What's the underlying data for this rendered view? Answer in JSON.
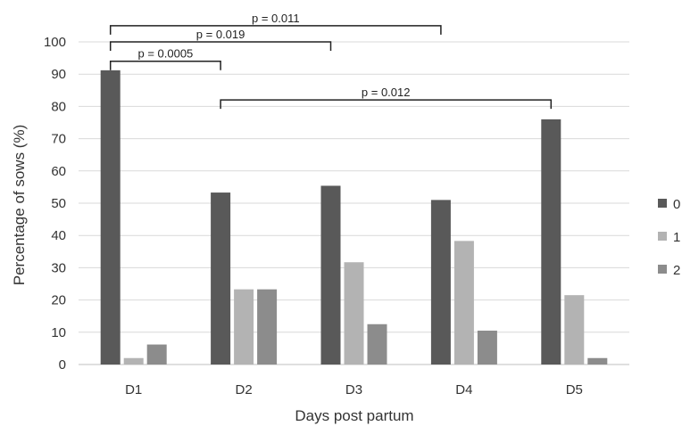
{
  "chart_data": {
    "type": "bar",
    "title": "",
    "xlabel": "Days post partum",
    "ylabel": "Percentage of sows (%)",
    "ylim": [
      0,
      100
    ],
    "yticks": [
      0,
      10,
      20,
      30,
      40,
      50,
      60,
      70,
      80,
      90,
      100
    ],
    "grid": true,
    "legend_position": "right",
    "categories": [
      "D1",
      "D2",
      "D3",
      "D4",
      "D5"
    ],
    "series": [
      {
        "name": "0",
        "color": "#595959",
        "values": [
          91.2,
          53.3,
          55.4,
          51.0,
          76.0
        ]
      },
      {
        "name": "1",
        "color": "#b3b3b3",
        "values": [
          2.0,
          23.3,
          31.7,
          38.3,
          21.5
        ]
      },
      {
        "name": "2",
        "color": "#8c8c8c",
        "values": [
          6.2,
          23.3,
          12.5,
          10.5,
          2.0
        ]
      }
    ],
    "annotations": [
      {
        "text": "p = 0.011",
        "from": "D1",
        "to": "D4",
        "y": 105
      },
      {
        "text": "p = 0.019",
        "from": "D1",
        "to": "D3",
        "y": 100
      },
      {
        "text": "p = 0.0005",
        "from": "D1",
        "to": "D2",
        "y": 94
      },
      {
        "text": "p = 0.012",
        "from": "D2",
        "to": "D5",
        "y": 82
      }
    ]
  }
}
